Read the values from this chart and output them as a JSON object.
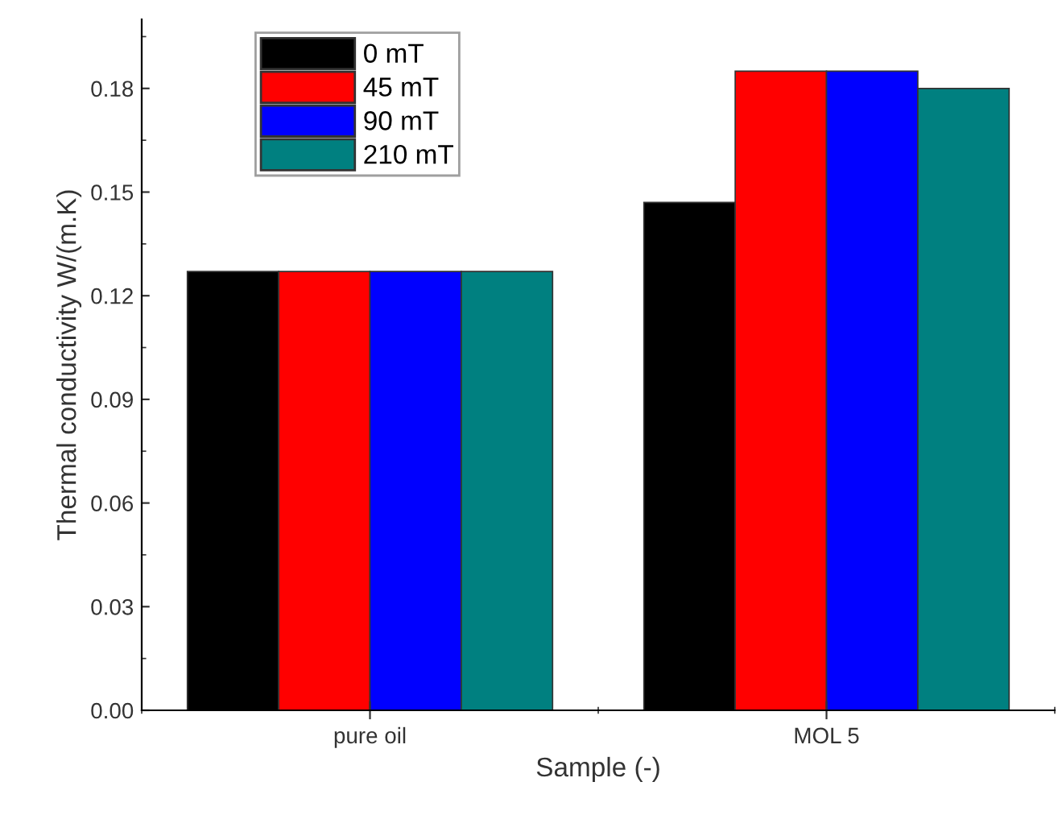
{
  "chart_data": {
    "type": "bar",
    "xlabel": "Sample (-)",
    "ylabel": "Thermal conductivity W/(m.K)",
    "categories": [
      "pure oil",
      "MOL 5"
    ],
    "series": [
      {
        "name": "0 mT",
        "color": "#000000",
        "values": [
          0.127,
          0.147
        ]
      },
      {
        "name": "45 mT",
        "color": "#ff0000",
        "values": [
          0.127,
          0.185
        ]
      },
      {
        "name": "90 mT",
        "color": "#0000ff",
        "values": [
          0.127,
          0.185
        ]
      },
      {
        "name": "210 mT",
        "color": "#008080",
        "values": [
          0.127,
          0.18
        ]
      }
    ],
    "ylim": [
      0,
      0.2
    ],
    "yticks": [
      {
        "value": 0,
        "label": "0.00"
      },
      0.03,
      0.06,
      0.09,
      0.12,
      0.15,
      0.18
    ],
    "grid": false,
    "legend": "top left"
  }
}
